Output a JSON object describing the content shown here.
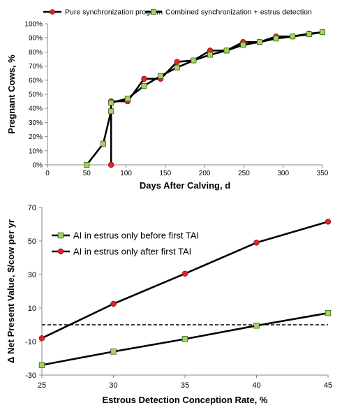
{
  "chart_data": [
    {
      "type": "line",
      "xlabel": "Days After Calving, d",
      "ylabel": "Pregnant Cows, %",
      "xlim": [
        0,
        350
      ],
      "ylim": [
        0,
        100
      ],
      "x_ticks": [
        "0",
        "50",
        "100",
        "150",
        "200",
        "250",
        "300",
        "350"
      ],
      "y_ticks": [
        "0%",
        "10%",
        "20%",
        "30%",
        "40%",
        "50%",
        "60%",
        "70%",
        "80%",
        "90%",
        "100%"
      ],
      "legend_position": "top",
      "grid": false,
      "series": [
        {
          "name": "Pure synchronization program",
          "marker": "circle",
          "color": "#e8212a",
          "x": [
            81,
            81,
            102,
            123,
            144,
            165,
            186,
            207,
            228,
            249,
            270,
            291,
            312,
            333,
            350
          ],
          "y": [
            0,
            45,
            45,
            61,
            61,
            73,
            74,
            81,
            81,
            87,
            87,
            91,
            91,
            93,
            94
          ]
        },
        {
          "name": "Combined synchronization + estrus detection",
          "marker": "square",
          "color": "#a4d65e",
          "x": [
            50,
            71,
            81,
            81,
            102,
            123,
            144,
            165,
            186,
            207,
            228,
            249,
            270,
            291,
            312,
            333,
            350
          ],
          "y": [
            0,
            15,
            38,
            44,
            47,
            56,
            63,
            69,
            74,
            78,
            81,
            85,
            87,
            89.5,
            91,
            92.5,
            94
          ]
        }
      ]
    },
    {
      "type": "line",
      "xlabel": "Estrous Detection Conception Rate, %",
      "ylabel": "Δ Net Present Value, $/cow per yr",
      "xlim": [
        25,
        45
      ],
      "ylim": [
        -30,
        70
      ],
      "x_ticks": [
        "25",
        "30",
        "35",
        "40",
        "45"
      ],
      "y_ticks": [
        "-30",
        "-10",
        "10",
        "30",
        "50",
        "70"
      ],
      "reference_line_y": 0,
      "legend_position": "top-left",
      "grid": false,
      "series": [
        {
          "name": "AI in estrus only before first TAI",
          "marker": "square",
          "color": "#a4d65e",
          "x": [
            25,
            30,
            35,
            40,
            45
          ],
          "y": [
            -24,
            -16,
            -8.5,
            -0.5,
            7
          ]
        },
        {
          "name": "AI in estrus only after first TAI",
          "marker": "circle",
          "color": "#e8212a",
          "x": [
            25,
            30,
            35,
            40,
            45
          ],
          "y": [
            -8,
            12.5,
            30.5,
            49,
            61.5
          ]
        }
      ]
    }
  ]
}
